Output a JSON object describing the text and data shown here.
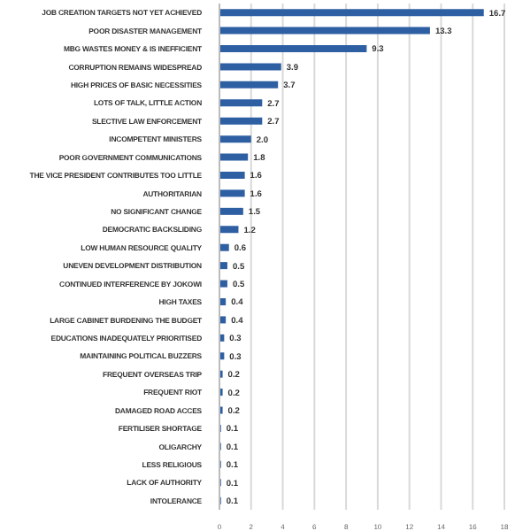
{
  "chart_data": {
    "type": "bar",
    "orientation": "horizontal",
    "categories": [
      "JOB CREATION TARGETS NOT YET ACHIEVED",
      "POOR DISASTER MANAGEMENT",
      "MBG WASTES MONEY & IS INEFFICIENT",
      "CORRUPTION REMAINS WIDESPREAD",
      "HIGH PRICES OF BASIC NECESSITIES",
      "LOTS OF TALK, LITTLE ACTION",
      "SLECTIVE LAW ENFORCEMENT",
      "INCOMPETENT MINISTERS",
      "POOR GOVERNMENT COMMUNICATIONS",
      "THE VICE PRESIDENT CONTRIBUTES TOO LITTLE",
      "AUTHORITARIAN",
      "NO SIGNIFICANT CHANGE",
      "DEMOCRATIC BACKSLIDING",
      "LOW HUMAN RESOURCE QUALITY",
      "UNEVEN DEVELOPMENT DISTRIBUTION",
      "CONTINUED INTERFERENCE BY JOKOWI",
      "HIGH TAXES",
      "LARGE CABINET BURDENING THE BUDGET",
      "EDUCATIONS INADEQUATELY PRIORITISED",
      "MAINTAINING POLITICAL BUZZERS",
      "FREQUENT OVERSEAS TRIP",
      "FREQUENT RIOT",
      "DAMAGED ROAD ACCES",
      "FERTILISER SHORTAGE",
      "OLIGARCHY",
      "LESS RELIGIOUS",
      "LACK OF AUTHORITY",
      "INTOLERANCE"
    ],
    "values": [
      16.7,
      13.3,
      9.3,
      3.9,
      3.7,
      2.7,
      2.7,
      2.0,
      1.8,
      1.6,
      1.6,
      1.5,
      1.2,
      0.6,
      0.5,
      0.5,
      0.4,
      0.4,
      0.3,
      0.3,
      0.2,
      0.2,
      0.2,
      0.1,
      0.1,
      0.1,
      0.1,
      0.1
    ],
    "value_labels": [
      "16.7",
      "13.3",
      "9.3",
      "3.9",
      "3.7",
      "2.7",
      "2.7",
      "2.0",
      "1.8",
      "1.6",
      "1.6",
      "1.5",
      "1.2",
      "0.6",
      "0.5",
      "0.5",
      "0.4",
      "0.4",
      "0.3",
      "0.3",
      "0.2",
      "0.2",
      "0.2",
      "0.1",
      "0.1",
      "0.1",
      "0.1",
      "0.1"
    ],
    "color": "#2e5fa3",
    "xlim": [
      0,
      18
    ],
    "xticks": [
      0,
      2,
      4,
      6,
      8,
      10,
      12,
      14,
      16,
      18
    ],
    "grid": "x"
  }
}
